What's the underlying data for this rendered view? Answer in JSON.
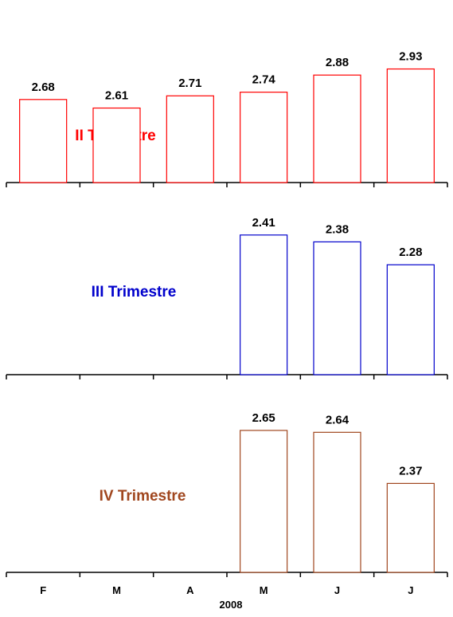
{
  "chart_data": [
    {
      "type": "bar",
      "annotation": "II Trimestre",
      "color": "#ff0000",
      "categories": [
        "F",
        "M",
        "A",
        "M",
        "J",
        "J"
      ],
      "values": [
        2.68,
        2.61,
        2.71,
        2.74,
        2.88,
        2.93
      ],
      "labels": [
        "2.68",
        "2.61",
        "2.71",
        "2.74",
        "2.88",
        "2.93"
      ]
    },
    {
      "type": "bar",
      "annotation": "III Trimestre",
      "color": "#0000cc",
      "categories": [
        "F",
        "M",
        "A",
        "M",
        "J",
        "J"
      ],
      "values": [
        null,
        null,
        null,
        2.41,
        2.38,
        2.28
      ],
      "labels": [
        "",
        "",
        "",
        "2.41",
        "2.38",
        "2.28"
      ]
    },
    {
      "type": "bar",
      "annotation": "IV Trimestre",
      "color": "#a0461e",
      "categories": [
        "F",
        "M",
        "A",
        "M",
        "J",
        "J"
      ],
      "values": [
        null,
        null,
        null,
        2.65,
        2.64,
        2.37
      ],
      "labels": [
        "",
        "",
        "",
        "2.65",
        "2.64",
        "2.37"
      ]
    }
  ],
  "x_axis": {
    "categories": [
      "F",
      "M",
      "A",
      "M",
      "J",
      "J"
    ],
    "year_label": "2008"
  }
}
